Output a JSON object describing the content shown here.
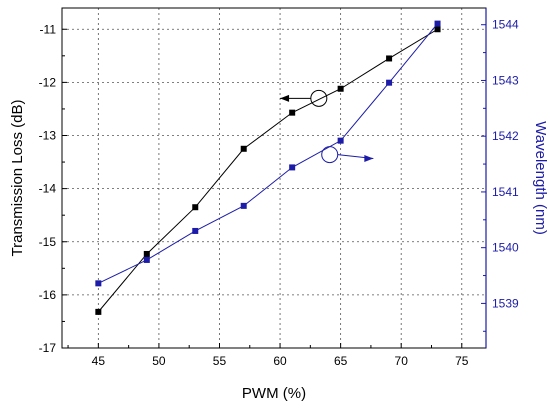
{
  "chart_data": {
    "type": "line",
    "xlabel": "PWM (%)",
    "ylabel_left": "Transmission Loss (dB)",
    "ylabel_right": "Wavelength (nm)",
    "xlim": [
      42,
      77
    ],
    "ylim_left": [
      -17,
      -10.6
    ],
    "ylim_right": [
      1538.2,
      1544.3
    ],
    "x_ticks": [
      45,
      50,
      55,
      60,
      65,
      70,
      75
    ],
    "y_ticks_left": [
      -17,
      -16,
      -15,
      -14,
      -13,
      -12,
      -11
    ],
    "y_ticks_right": [
      1539,
      1540,
      1541,
      1542,
      1543,
      1544
    ],
    "grid": true,
    "series": [
      {
        "axis": "left",
        "color": "#000000",
        "x": [
          45,
          49,
          53,
          57,
          61,
          65,
          69,
          73
        ],
        "values": [
          -16.32,
          -15.23,
          -14.35,
          -13.25,
          -12.57,
          -12.12,
          -11.55,
          -11.0
        ]
      },
      {
        "axis": "right",
        "color": "#1c1ca8",
        "x": [
          45,
          49,
          53,
          57,
          61,
          65,
          69,
          73
        ],
        "values": [
          1539.36,
          1539.78,
          1540.3,
          1540.75,
          1541.44,
          1541.92,
          1542.96,
          1544.02
        ]
      }
    ],
    "annotations": [
      {
        "target": "left",
        "circle": [
          63.2,
          -12.3
        ],
        "arrow_to": [
          60.0,
          -12.3
        ]
      },
      {
        "target": "right",
        "circle": [
          64.1,
          1541.67
        ],
        "arrow_to": [
          67.7,
          1541.6
        ]
      }
    ]
  }
}
